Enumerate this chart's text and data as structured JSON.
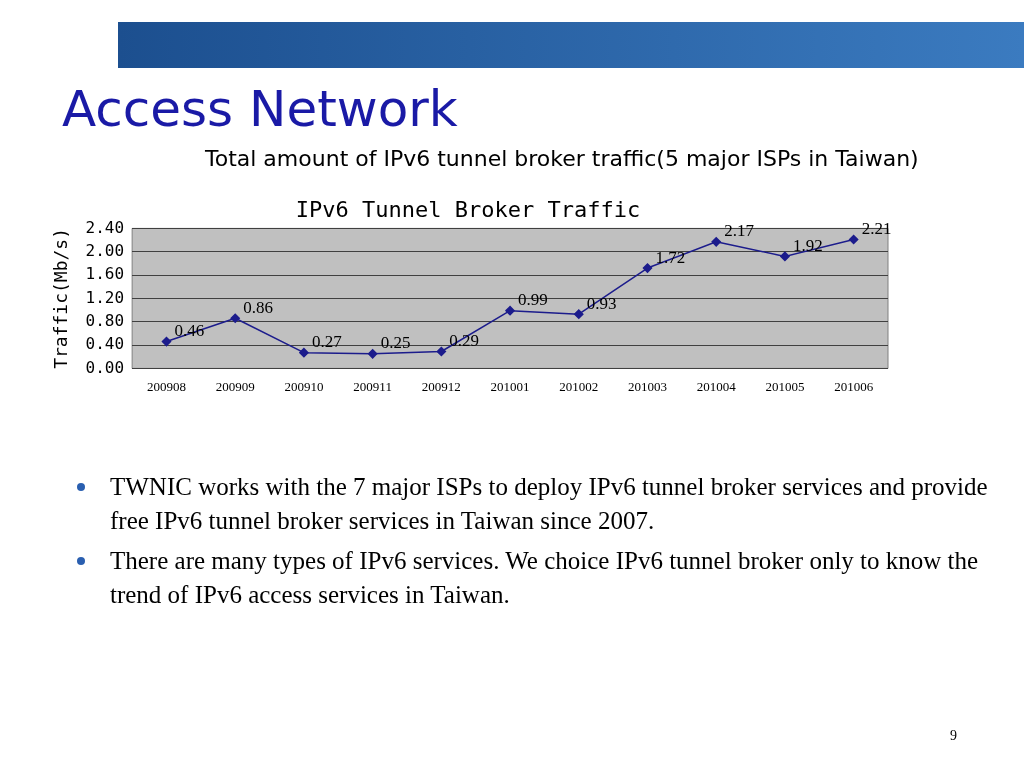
{
  "chart_data": {
    "type": "line",
    "title": "IPv6 Tunnel Broker Traffic",
    "subtitle": "Total amount of IPv6 tunnel broker traffic(5 major ISPs in Taiwan)",
    "ylabel": "Traffic(Mb/s)",
    "categories": [
      "200908",
      "200909",
      "200910",
      "200911",
      "200912",
      "201001",
      "201002",
      "201003",
      "201004",
      "201005",
      "201006"
    ],
    "values": [
      0.46,
      0.86,
      0.27,
      0.25,
      0.29,
      0.99,
      0.93,
      1.72,
      2.17,
      1.92,
      2.21
    ],
    "color": "#1c1c8c",
    "ylim": [
      0,
      2.4
    ],
    "yticks": [
      {
        "value": 0,
        "label": "0.00"
      },
      {
        "value": 0.4,
        "label": "0.40"
      },
      {
        "value": 0.8,
        "label": "0.80"
      },
      {
        "value": 1.2,
        "label": "1.20"
      },
      {
        "value": 1.6,
        "label": "1.60"
      },
      {
        "value": 2.0,
        "label": "2.00"
      },
      {
        "value": 2.4,
        "label": "2.40"
      }
    ],
    "grid": "y",
    "data_labels": true,
    "marker": "diamond",
    "legend": false,
    "annotations": [
      "Access Network",
      "TWNIC works with the 7 major ISPs to deploy IPv6 tunnel broker services and provide free IPv6 tunnel broker services in Taiwan since 2007.",
      "There are many types of IPv6 services. We choice IPv6 tunnel broker only to know the trend of IPv6 access services in Taiwan.",
      "9"
    ]
  }
}
